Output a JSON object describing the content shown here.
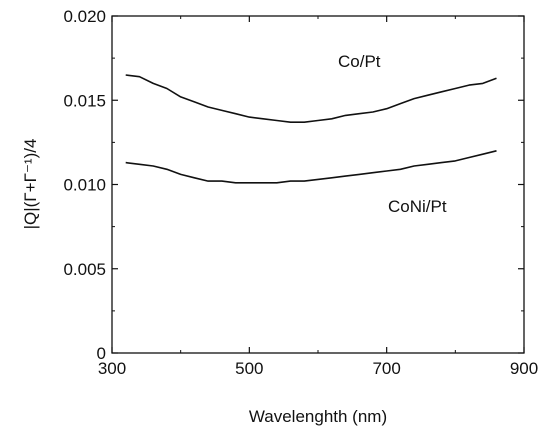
{
  "chart_data": {
    "type": "line",
    "xlabel": "Wavelenghth (nm)",
    "ylabel": "|Q|(Γ+Γ⁻¹)/4",
    "xlim": [
      300,
      900
    ],
    "ylim": [
      0,
      0.02
    ],
    "x_ticks": [
      300,
      500,
      700,
      900
    ],
    "y_ticks": [
      0,
      0.005,
      0.01,
      0.015,
      0.02
    ],
    "x_tick_labels": [
      "300",
      "500",
      "700",
      "900"
    ],
    "y_tick_labels": [
      "0",
      "0.005",
      "0.010",
      "0.015",
      "0.020"
    ],
    "grid": false,
    "series": [
      {
        "name": "Co/Pt",
        "color": "#111111",
        "x": [
          320,
          340,
          360,
          380,
          400,
          420,
          440,
          460,
          480,
          500,
          520,
          540,
          560,
          580,
          600,
          620,
          640,
          660,
          680,
          700,
          720,
          740,
          760,
          780,
          800,
          820,
          840,
          860
        ],
        "y": [
          0.0165,
          0.0164,
          0.016,
          0.0157,
          0.0152,
          0.0149,
          0.0146,
          0.0144,
          0.0142,
          0.014,
          0.0139,
          0.0138,
          0.0137,
          0.0137,
          0.0138,
          0.0139,
          0.0141,
          0.0142,
          0.0143,
          0.0145,
          0.0148,
          0.0151,
          0.0153,
          0.0155,
          0.0157,
          0.0159,
          0.016,
          0.0163
        ]
      },
      {
        "name": "CoNi/Pt",
        "color": "#111111",
        "x": [
          320,
          340,
          360,
          380,
          400,
          420,
          440,
          460,
          480,
          500,
          520,
          540,
          560,
          580,
          600,
          620,
          640,
          660,
          680,
          700,
          720,
          740,
          760,
          780,
          800,
          820,
          840,
          860
        ],
        "y": [
          0.0113,
          0.0112,
          0.0111,
          0.0109,
          0.0106,
          0.0104,
          0.0102,
          0.0102,
          0.0101,
          0.0101,
          0.0101,
          0.0101,
          0.0102,
          0.0102,
          0.0103,
          0.0104,
          0.0105,
          0.0106,
          0.0107,
          0.0108,
          0.0109,
          0.0111,
          0.0112,
          0.0113,
          0.0114,
          0.0116,
          0.0118,
          0.012
        ]
      }
    ]
  }
}
